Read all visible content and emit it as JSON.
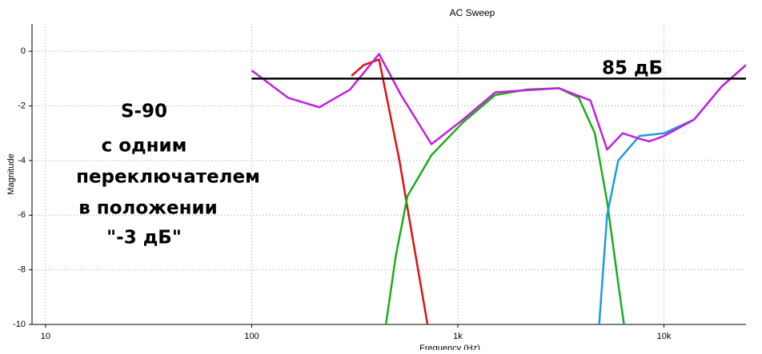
{
  "chart_data": {
    "type": "line",
    "title": "AC Sweep",
    "x_label": "Frequency (Hz)",
    "y_label": "Magnitude",
    "xscale": "log",
    "xlim": [
      8.6,
      25000
    ],
    "ylim": [
      -10,
      1
    ],
    "xticks": [
      10,
      100,
      {
        "value": 1000,
        "label": "1k"
      },
      {
        "value": 10000,
        "label": "10k"
      }
    ],
    "yticks": [
      0,
      -2,
      -4,
      -6,
      -8,
      -10
    ],
    "grid": true,
    "annotations": [
      "85 дБ",
      "S-90",
      "с одним",
      "переключателем",
      "в положении",
      "\"-3 дБ\""
    ],
    "series": [
      {
        "color": "#e01010",
        "x": [
          305,
          350,
          415,
          521,
          593,
          713
        ],
        "values": [
          -0.9,
          -0.5,
          -0.3,
          -4,
          -6.5,
          -10
        ]
      },
      {
        "color": "#1aae1a",
        "x": [
          448,
          500,
          570,
          745,
          1060,
          1520,
          2170,
          3090,
          3860,
          4620,
          5300,
          6000,
          6400
        ],
        "values": [
          -10,
          -7.5,
          -5.3,
          -3.8,
          -2.6,
          -1.6,
          -1.4,
          -1.35,
          -1.7,
          -3,
          -5.5,
          -8.5,
          -10
        ]
      },
      {
        "color": "#1e9be0",
        "x": [
          4850,
          5300,
          6000,
          7600,
          10000,
          14000,
          19000,
          25000
        ],
        "values": [
          -10,
          -6,
          -4,
          -3.1,
          -3.0,
          -2.5,
          -1.3,
          -0.5
        ]
      },
      {
        "color": "#c020e0",
        "x": [
          100,
          150,
          213,
          300,
          415,
          530,
          745,
          1060,
          1520,
          3090,
          4400,
          5300,
          6300,
          7600,
          8500,
          10000,
          14000,
          19000,
          25000
        ],
        "values": [
          -0.7,
          -1.7,
          -2.05,
          -1.4,
          -0.1,
          -1.6,
          -3.4,
          -2.5,
          -1.5,
          -1.35,
          -1.8,
          -3.6,
          -3.0,
          -3.2,
          -3.3,
          -3.1,
          -2.5,
          -1.3,
          -0.5
        ]
      },
      {
        "color": "#000000",
        "x": [
          100,
          25000
        ],
        "values": [
          -1,
          -1
        ]
      }
    ]
  }
}
